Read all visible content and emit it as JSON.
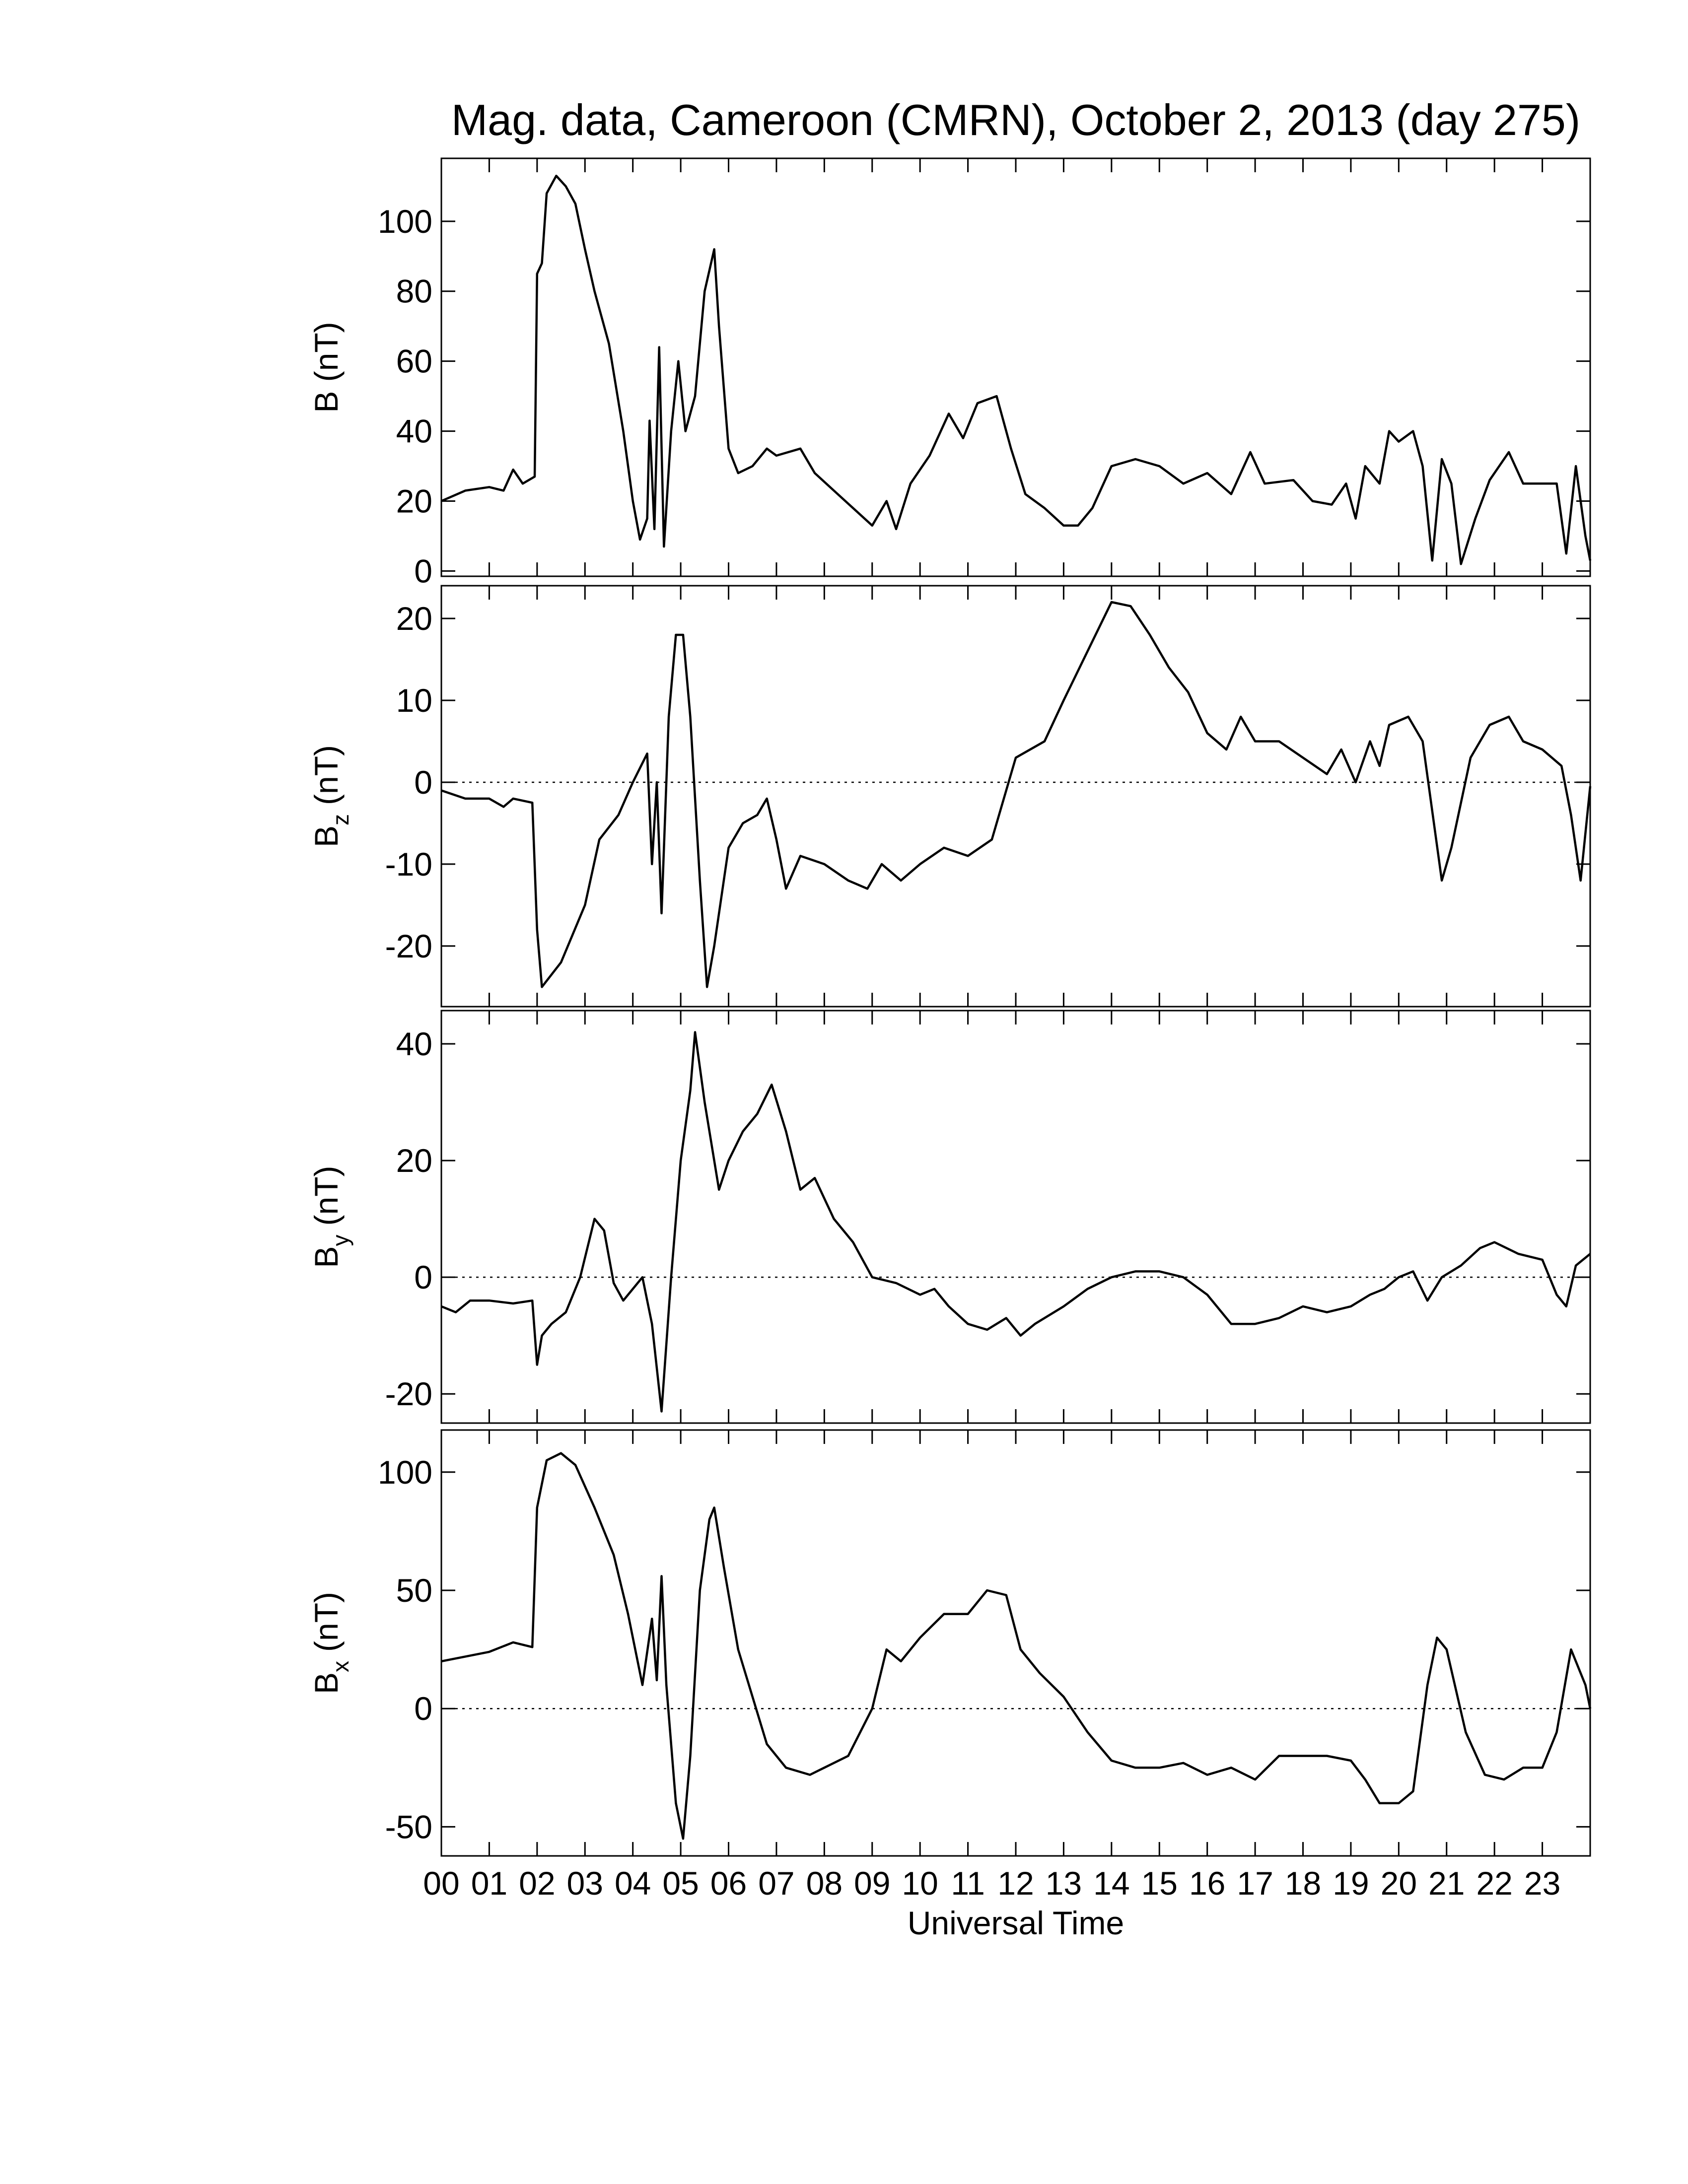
{
  "chart_data": [
    {
      "type": "line",
      "title": "Mag. data, Cameroon (CMRN), October 2, 2013 (day 275)",
      "ylabel": "B (nT)",
      "color": "#000000",
      "x": [
        0,
        0.5,
        1,
        1.3,
        1.5,
        1.7,
        1.95,
        2.0,
        2.1,
        2.2,
        2.4,
        2.6,
        2.8,
        3.0,
        3.2,
        3.5,
        3.8,
        4.0,
        4.15,
        4.3,
        4.35,
        4.45,
        4.55,
        4.65,
        4.8,
        4.95,
        5.1,
        5.3,
        5.5,
        5.7,
        5.8,
        6.0,
        6.2,
        6.5,
        6.8,
        7.0,
        7.5,
        7.8,
        8.2,
        8.6,
        9.0,
        9.3,
        9.5,
        9.8,
        10.2,
        10.6,
        10.9,
        11.2,
        11.6,
        11.9,
        12.2,
        12.6,
        13.0,
        13.3,
        13.6,
        14.0,
        14.5,
        15.0,
        15.5,
        16.0,
        16.5,
        16.9,
        17.2,
        17.8,
        18.2,
        18.6,
        18.9,
        19.1,
        19.3,
        19.6,
        19.8,
        20.0,
        20.3,
        20.5,
        20.7,
        20.9,
        21.1,
        21.3,
        21.6,
        21.9,
        22.3,
        22.6,
        23.0,
        23.3,
        23.5,
        23.7,
        23.9,
        24
      ],
      "values": [
        20,
        23,
        24,
        23,
        29,
        25,
        27,
        85,
        88,
        108,
        113,
        110,
        105,
        92,
        80,
        65,
        40,
        20,
        9,
        15,
        43,
        12,
        64,
        7,
        40,
        60,
        40,
        50,
        80,
        92,
        70,
        35,
        28,
        30,
        35,
        33,
        35,
        28,
        23,
        18,
        13,
        20,
        12,
        25,
        33,
        45,
        38,
        48,
        50,
        35,
        22,
        18,
        13,
        13,
        18,
        30,
        32,
        30,
        25,
        28,
        22,
        34,
        25,
        26,
        20,
        19,
        25,
        15,
        30,
        25,
        40,
        37,
        40,
        30,
        3,
        32,
        25,
        2,
        15,
        26,
        34,
        25,
        25,
        25,
        5,
        30,
        10,
        3
      ],
      "xlim": [
        0,
        24
      ],
      "ylim": [
        -1.5,
        118
      ],
      "yticks": [
        0,
        20,
        40,
        60,
        80,
        100
      ]
    },
    {
      "type": "line",
      "ylabel": [
        "B",
        "z",
        "(nT)"
      ],
      "color": "#000000",
      "reference_line": 0,
      "x": [
        0,
        0.5,
        1,
        1.3,
        1.5,
        1.9,
        2.0,
        2.1,
        2.5,
        3.0,
        3.3,
        3.7,
        4.0,
        4.3,
        4.4,
        4.5,
        4.6,
        4.75,
        4.9,
        5.05,
        5.2,
        5.4,
        5.55,
        5.7,
        6.0,
        6.3,
        6.6,
        6.8,
        7.0,
        7.2,
        7.5,
        8.0,
        8.5,
        8.9,
        9.2,
        9.6,
        10.0,
        10.5,
        11.0,
        11.5,
        12.0,
        12.3,
        12.6,
        13.0,
        13.5,
        14.0,
        14.4,
        14.8,
        15.2,
        15.6,
        16.0,
        16.4,
        16.7,
        17.0,
        17.5,
        18.0,
        18.5,
        18.8,
        19.1,
        19.4,
        19.6,
        19.8,
        20.2,
        20.5,
        20.9,
        21.1,
        21.5,
        21.9,
        22.3,
        22.6,
        23.0,
        23.4,
        23.6,
        23.8,
        24
      ],
      "values": [
        -1,
        -2,
        -2,
        -3,
        -2,
        -2.5,
        -18,
        -25,
        -22,
        -15,
        -7,
        -4,
        0,
        3.5,
        -10,
        0,
        -16,
        8,
        18,
        18,
        8,
        -12,
        -25,
        -20,
        -8,
        -5,
        -4,
        -2,
        -7,
        -13,
        -9,
        -10,
        -12,
        -13,
        -10,
        -12,
        -10,
        -8,
        -9,
        -7,
        3,
        4,
        5,
        10,
        16,
        22,
        21.5,
        18,
        14,
        11,
        6,
        4,
        8,
        5,
        5,
        3,
        1,
        4,
        0,
        5,
        2,
        7,
        8,
        5,
        -12,
        -8,
        3,
        7,
        8,
        5,
        4,
        2,
        -4,
        -12,
        -0.5
      ],
      "xlim": [
        0,
        24
      ],
      "ylim": [
        -27.4,
        24
      ],
      "yticks": [
        -20,
        -10,
        0,
        10,
        20
      ]
    },
    {
      "type": "line",
      "ylabel": [
        "B",
        "y",
        "(nT)"
      ],
      "color": "#000000",
      "reference_line": 0,
      "x": [
        0,
        0.3,
        0.6,
        1.0,
        1.5,
        1.9,
        2.0,
        2.1,
        2.3,
        2.6,
        2.9,
        3.2,
        3.4,
        3.6,
        3.8,
        4.0,
        4.2,
        4.4,
        4.6,
        4.8,
        5.0,
        5.2,
        5.3,
        5.5,
        5.8,
        6.0,
        6.3,
        6.6,
        6.9,
        7.2,
        7.5,
        7.8,
        8.2,
        8.6,
        9.0,
        9.5,
        10.0,
        10.3,
        10.6,
        11.0,
        11.4,
        11.8,
        12.1,
        12.4,
        13.0,
        13.5,
        14.0,
        14.5,
        15.0,
        15.5,
        16.0,
        16.5,
        17.0,
        17.5,
        18.0,
        18.5,
        19.0,
        19.4,
        19.7,
        20.0,
        20.3,
        20.6,
        20.9,
        21.3,
        21.7,
        22.0,
        22.5,
        23.0,
        23.3,
        23.5,
        23.7,
        24
      ],
      "values": [
        -5,
        -6,
        -4,
        -4,
        -4.5,
        -4,
        -15,
        -10,
        -8,
        -6,
        0,
        10,
        8,
        -1,
        -4,
        -2,
        0,
        -8,
        -23,
        0,
        20,
        32,
        42,
        30,
        15,
        20,
        25,
        28,
        33,
        25,
        15,
        17,
        10,
        6,
        0,
        -1,
        -3,
        -2,
        -5,
        -8,
        -9,
        -7,
        -10,
        -8,
        -5,
        -2,
        0,
        1,
        1,
        0,
        -3,
        -8,
        -8,
        -7,
        -5,
        -6,
        -5,
        -3,
        -2,
        0,
        1,
        -4,
        0,
        2,
        5,
        6,
        4,
        3,
        -3,
        -5,
        2,
        4
      ],
      "xlim": [
        0,
        24
      ],
      "ylim": [
        -25,
        45.7
      ],
      "yticks": [
        -20,
        0,
        20,
        40
      ]
    },
    {
      "type": "line",
      "ylabel": [
        "B",
        "x",
        "(nT)"
      ],
      "xlabel": "Universal Time",
      "color": "#000000",
      "reference_line": 0,
      "x": [
        0,
        0.5,
        1,
        1.5,
        1.9,
        2.0,
        2.2,
        2.5,
        2.8,
        3.2,
        3.6,
        3.9,
        4.2,
        4.4,
        4.5,
        4.6,
        4.7,
        4.9,
        5.05,
        5.2,
        5.4,
        5.6,
        5.7,
        5.9,
        6.2,
        6.5,
        6.8,
        7.2,
        7.7,
        8.0,
        8.5,
        9.0,
        9.3,
        9.6,
        10.0,
        10.5,
        11.0,
        11.4,
        11.8,
        12.1,
        12.5,
        13.0,
        13.5,
        14.0,
        14.5,
        15.0,
        15.5,
        16.0,
        16.5,
        17.0,
        17.5,
        18.0,
        18.5,
        19.0,
        19.3,
        19.6,
        20.0,
        20.3,
        20.6,
        20.8,
        21.0,
        21.4,
        21.8,
        22.2,
        22.6,
        23.0,
        23.3,
        23.6,
        23.9,
        24
      ],
      "values": [
        20,
        22,
        24,
        28,
        26,
        85,
        105,
        108,
        103,
        85,
        65,
        40,
        10,
        38,
        12,
        56,
        10,
        -40,
        -55,
        -20,
        50,
        80,
        85,
        60,
        25,
        5,
        -15,
        -25,
        -28,
        -25,
        -20,
        0,
        25,
        20,
        30,
        40,
        40,
        50,
        48,
        25,
        15,
        5,
        -10,
        -22,
        -25,
        -25,
        -23,
        -28,
        -25,
        -30,
        -20,
        -20,
        -20,
        -22,
        -30,
        -40,
        -40,
        -35,
        10,
        30,
        25,
        -10,
        -28,
        -30,
        -25,
        -25,
        -10,
        25,
        10,
        0
      ],
      "xlim": [
        0,
        24
      ],
      "ylim": [
        -62.3,
        117.8
      ],
      "yticks": [
        -50,
        0,
        50,
        100
      ],
      "xticks": [
        {
          "value": 0,
          "label": "00"
        },
        {
          "value": 1,
          "label": "01"
        },
        {
          "value": 2,
          "label": "02"
        },
        {
          "value": 3,
          "label": "03"
        },
        {
          "value": 4,
          "label": "04"
        },
        {
          "value": 5,
          "label": "05"
        },
        {
          "value": 6,
          "label": "06"
        },
        {
          "value": 7,
          "label": "07"
        },
        {
          "value": 8,
          "label": "08"
        },
        {
          "value": 9,
          "label": "09"
        },
        {
          "value": 10,
          "label": "10"
        },
        {
          "value": 11,
          "label": "11"
        },
        {
          "value": 12,
          "label": "12"
        },
        {
          "value": 13,
          "label": "13"
        },
        {
          "value": 14,
          "label": "14"
        },
        {
          "value": 15,
          "label": "15"
        },
        {
          "value": 16,
          "label": "16"
        },
        {
          "value": 17,
          "label": "17"
        },
        {
          "value": 18,
          "label": "18"
        },
        {
          "value": 19,
          "label": "19"
        },
        {
          "value": 20,
          "label": "20"
        },
        {
          "value": 21,
          "label": "21"
        },
        {
          "value": 22,
          "label": "22"
        },
        {
          "value": 23,
          "label": "23"
        }
      ]
    }
  ]
}
